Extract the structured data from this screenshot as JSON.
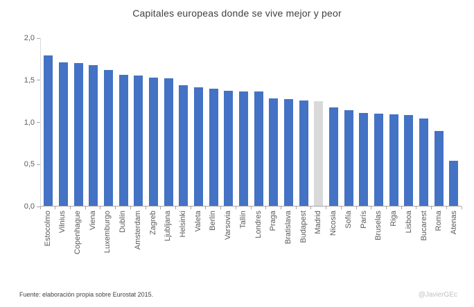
{
  "chart_data": {
    "type": "bar",
    "title": "Capitales europeas donde se vive mejor y peor",
    "categories": [
      "Estocolmo",
      "Vilnius",
      "Copenhague",
      "Viena",
      "Luxemburgo",
      "Dublín",
      "Amsterdam",
      "Zagreb",
      "Ljubljana",
      "Helsinki",
      "Valeta",
      "Berlín",
      "Varsovia",
      "Tallín",
      "Londres",
      "Praga",
      "Bratislava",
      "Budapest",
      "Madrid",
      "Nicosia",
      "Sofía",
      "París",
      "Bruselas",
      "Riga",
      "Lisboa",
      "Bucarest",
      "Roma",
      "Atenas"
    ],
    "values": [
      1.79,
      1.71,
      1.7,
      1.68,
      1.62,
      1.56,
      1.55,
      1.53,
      1.52,
      1.44,
      1.41,
      1.4,
      1.37,
      1.36,
      1.36,
      1.28,
      1.27,
      1.26,
      1.25,
      1.17,
      1.14,
      1.11,
      1.1,
      1.09,
      1.08,
      1.04,
      0.89,
      0.54
    ],
    "ylim": [
      0,
      2
    ],
    "ytick_labels": [
      "0,0",
      "0,5",
      "1,0",
      "1,5",
      "2,0"
    ],
    "ytick_values": [
      0,
      0.5,
      1.0,
      1.5,
      2.0
    ],
    "bar_color": "#4472C4",
    "highlight_category": "Madrid",
    "highlight_color": "#D9D9D9",
    "grid": false,
    "legend": "none",
    "xlabel": "",
    "ylabel": ""
  },
  "footer": {
    "source": "Fuente: elaboración propia sobre Eurostat 2015.",
    "credit": "@JavierGEc"
  }
}
